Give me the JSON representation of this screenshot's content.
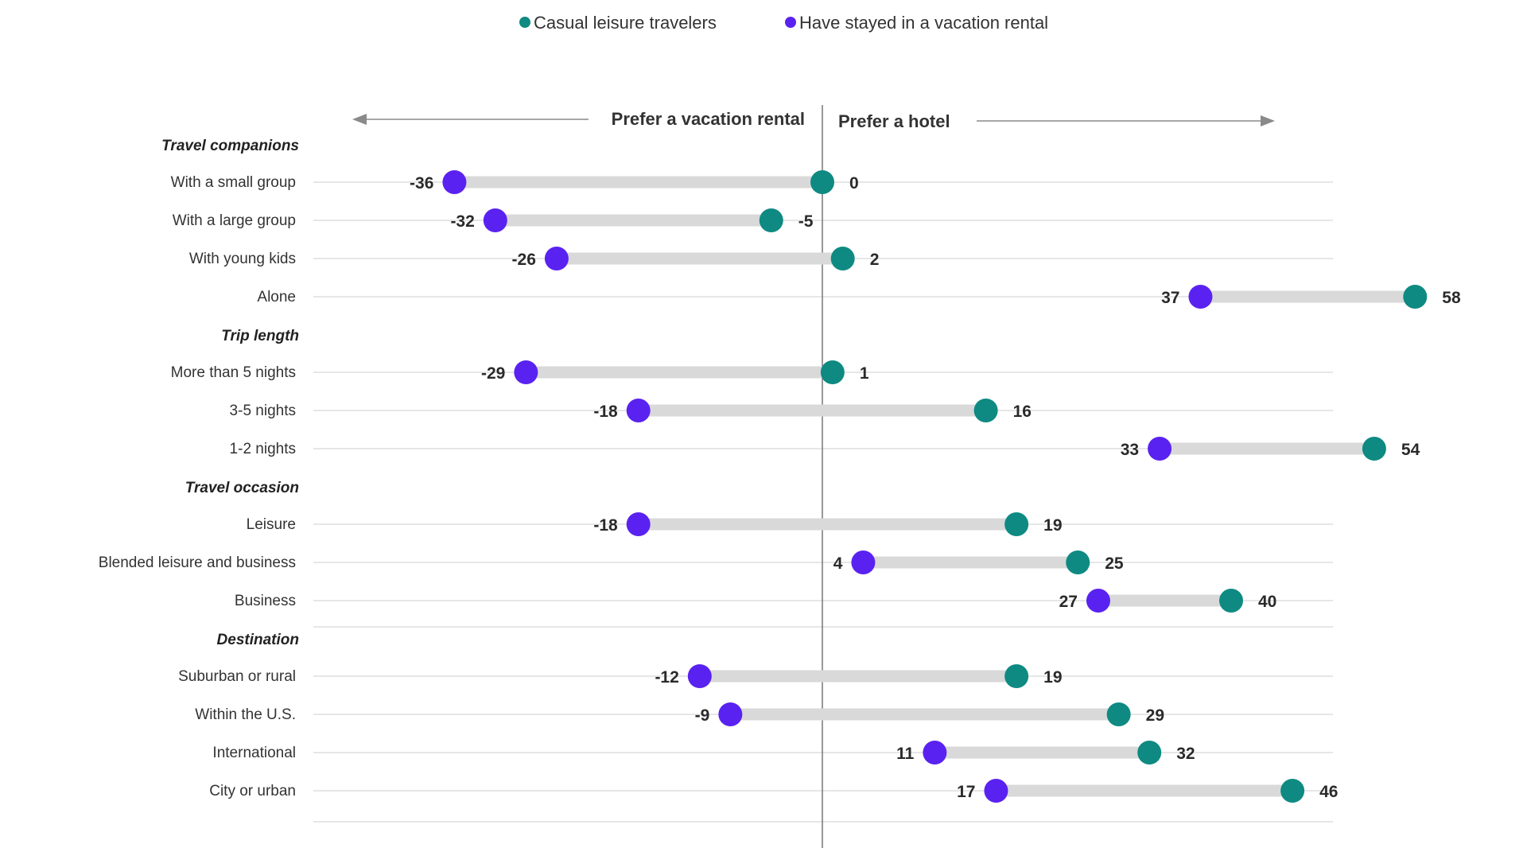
{
  "chart_data": {
    "type": "dumbbell",
    "legend": {
      "position": "top-center",
      "items": [
        {
          "key": "casual",
          "label": "Casual leisure travelers",
          "color": "#0e8a82"
        },
        {
          "key": "rental",
          "label": "Have stayed in a vacation rental",
          "color": "#5a22f0"
        }
      ]
    },
    "left_header": "Prefer a vacation rental",
    "right_header": "Prefer a hotel",
    "x_range": [
      -55,
      70
    ],
    "zero_line": true,
    "connector_color": "#d9d9d9",
    "gridline_color": "#dedede",
    "groups": [
      {
        "title": "Travel companions",
        "rows": [
          {
            "label": "With a small group",
            "casual": 0,
            "rental": -36
          },
          {
            "label": "With a large group",
            "casual": -5,
            "rental": -32
          },
          {
            "label": "With young kids",
            "casual": 2,
            "rental": -26
          },
          {
            "label": "Alone",
            "casual": 58,
            "rental": 37
          }
        ]
      },
      {
        "title": "Trip length",
        "rows": [
          {
            "label": "More than 5 nights",
            "casual": 1,
            "rental": -29
          },
          {
            "label": "3-5 nights",
            "casual": 16,
            "rental": -18
          },
          {
            "label": "1-2 nights",
            "casual": 54,
            "rental": 33
          }
        ]
      },
      {
        "title": "Travel occasion",
        "rows": [
          {
            "label": "Leisure",
            "casual": 19,
            "rental": -18
          },
          {
            "label": "Blended leisure and business",
            "casual": 25,
            "rental": 4
          },
          {
            "label": "Business",
            "casual": 40,
            "rental": 27
          }
        ]
      },
      {
        "title": "Destination",
        "rows": [
          {
            "label": "Suburban or rural",
            "casual": 19,
            "rental": -12
          },
          {
            "label": "Within the U.S.",
            "casual": 29,
            "rental": -9
          },
          {
            "label": "International",
            "casual": 32,
            "rental": 11
          },
          {
            "label": "City or urban",
            "casual": 46,
            "rental": 17
          }
        ]
      }
    ]
  }
}
